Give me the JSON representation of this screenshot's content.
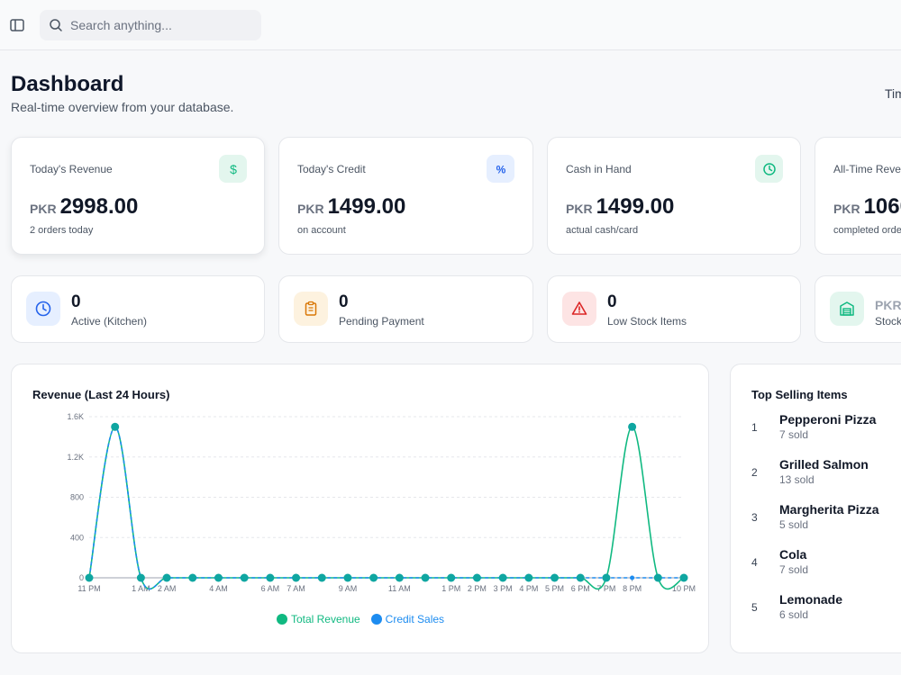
{
  "search": {
    "placeholder": "Search anything..."
  },
  "header": {
    "title": "Dashboard",
    "subtitle": "Real-time overview from your database.",
    "right_hint": "Tim"
  },
  "stats": [
    {
      "label": "Today's Revenue",
      "currency": "PKR",
      "value": "2998.00",
      "sub": "2 orders today",
      "icon": "dollar-icon",
      "accent": "#10b981"
    },
    {
      "label": "Today's Credit",
      "currency": "PKR",
      "value": "1499.00",
      "sub": "on account",
      "icon": "percent-icon",
      "accent": "#2563eb"
    },
    {
      "label": "Cash in Hand",
      "currency": "PKR",
      "value": "1499.00",
      "sub": "actual cash/card",
      "icon": "clock-icon",
      "accent": "#10b981"
    },
    {
      "label": "All-Time Reve",
      "currency": "PKR",
      "value": "1060",
      "sub": "completed orde",
      "icon": "",
      "accent": "#10b981"
    }
  ],
  "mini_stats": [
    {
      "value": "0",
      "label": "Active (Kitchen)",
      "icon": "clock-icon",
      "accent": "#2563eb"
    },
    {
      "value": "0",
      "label": "Pending Payment",
      "icon": "clipboard-icon",
      "accent": "#d97706"
    },
    {
      "value": "0",
      "label": "Low Stock Items",
      "icon": "alert-triangle-icon",
      "accent": "#dc2626"
    },
    {
      "value": "PKR",
      "label": "Stock",
      "icon": "warehouse-icon",
      "accent": "#10b981"
    }
  ],
  "chart": {
    "title": "Revenue (Last 24 Hours)",
    "legend": {
      "total": "Total Revenue",
      "credit": "Credit Sales"
    }
  },
  "top_selling": {
    "title": "Top Selling Items",
    "items": [
      {
        "rank": "1",
        "name": "Pepperoni Pizza",
        "sold": "7 sold"
      },
      {
        "rank": "2",
        "name": "Grilled Salmon",
        "sold": "13 sold"
      },
      {
        "rank": "3",
        "name": "Margherita Pizza",
        "sold": "5 sold"
      },
      {
        "rank": "4",
        "name": "Cola",
        "sold": "7 sold"
      },
      {
        "rank": "5",
        "name": "Lemonade",
        "sold": "6 sold"
      }
    ]
  },
  "colors": {
    "total_revenue": "#10b981",
    "credit_sales": "#1d8cf0"
  },
  "chart_data": {
    "type": "line",
    "title": "Revenue (Last 24 Hours)",
    "y_ticks": [
      "0",
      "400",
      "800",
      "1.2K",
      "1.6K"
    ],
    "ylim": [
      0,
      1600
    ],
    "x_tick_labels": [
      "11 PM",
      "1 AM",
      "2 AM",
      "4 AM",
      "6 AM",
      "7 AM",
      "9 AM",
      "11 AM",
      "1 PM",
      "2 PM",
      "3 PM",
      "4 PM",
      "5 PM",
      "6 PM",
      "7 PM",
      "8 PM",
      "10 PM"
    ],
    "x_tick_hours": [
      -1,
      1,
      2,
      4,
      6,
      7,
      9,
      11,
      13,
      14,
      15,
      16,
      17,
      18,
      19,
      20,
      22
    ],
    "x_hours": [
      -1,
      0,
      1,
      2,
      3,
      4,
      5,
      6,
      7,
      8,
      9,
      10,
      11,
      12,
      13,
      14,
      15,
      16,
      17,
      18,
      19,
      20,
      21,
      22
    ],
    "series": [
      {
        "name": "Total Revenue",
        "values": [
          0,
          1499,
          0,
          0,
          0,
          0,
          0,
          0,
          0,
          0,
          0,
          0,
          0,
          0,
          0,
          0,
          0,
          0,
          0,
          0,
          0,
          1499,
          0,
          0
        ]
      },
      {
        "name": "Credit Sales",
        "values": [
          0,
          1499,
          0,
          0,
          0,
          0,
          0,
          0,
          0,
          0,
          0,
          0,
          0,
          0,
          0,
          0,
          0,
          0,
          0,
          0,
          0,
          0,
          0,
          0
        ]
      }
    ],
    "grid": true,
    "legend_position": "bottom"
  }
}
